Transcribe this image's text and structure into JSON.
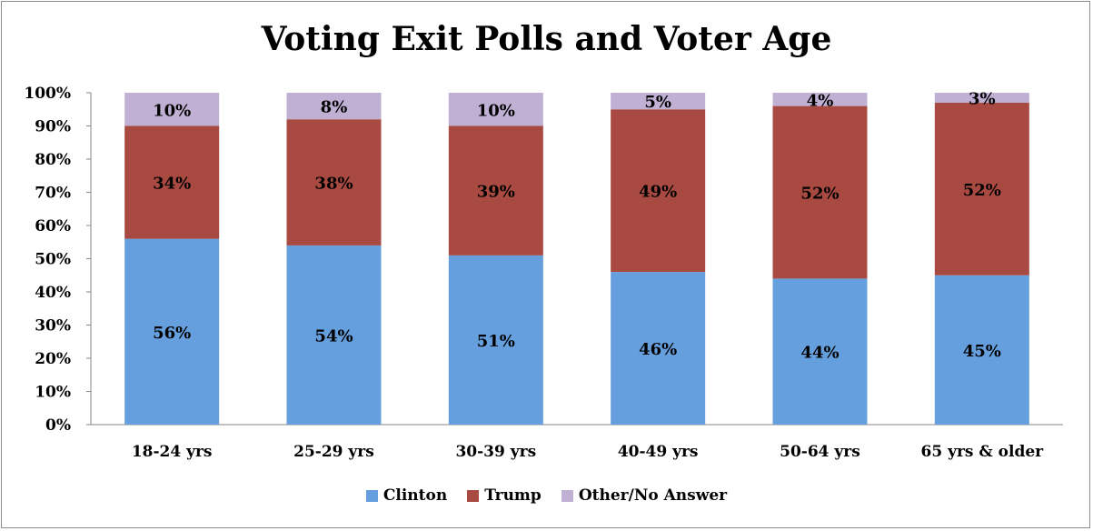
{
  "chart_data": {
    "type": "bar",
    "stacked": true,
    "title": "Voting Exit Polls and Voter Age",
    "xlabel": "",
    "ylabel": "",
    "ylim": [
      0,
      100
    ],
    "yticks": [
      "0%",
      "10%",
      "20%",
      "30%",
      "40%",
      "50%",
      "60%",
      "70%",
      "80%",
      "90%",
      "100%"
    ],
    "categories": [
      "18-24 yrs",
      "25-29 yrs",
      "30-39 yrs",
      "40-49 yrs",
      "50-64 yrs",
      "65 yrs & older"
    ],
    "series": [
      {
        "name": "Clinton",
        "color": "#659fdd",
        "values": [
          56,
          54,
          51,
          46,
          44,
          45
        ],
        "labels": [
          "56%",
          "54%",
          "51%",
          "46%",
          "44%",
          "45%"
        ]
      },
      {
        "name": "Trump",
        "color": "#a84a41",
        "values": [
          34,
          38,
          39,
          49,
          52,
          52
        ],
        "labels": [
          "34%",
          "38%",
          "39%",
          "49%",
          "52%",
          "52%"
        ]
      },
      {
        "name": "Other/No Answer",
        "color": "#c0b0d3",
        "values": [
          10,
          8,
          10,
          5,
          4,
          3
        ],
        "labels": [
          "10%",
          "8%",
          "10%",
          "5%",
          "4%",
          "3%"
        ]
      }
    ],
    "legend_position": "bottom"
  }
}
